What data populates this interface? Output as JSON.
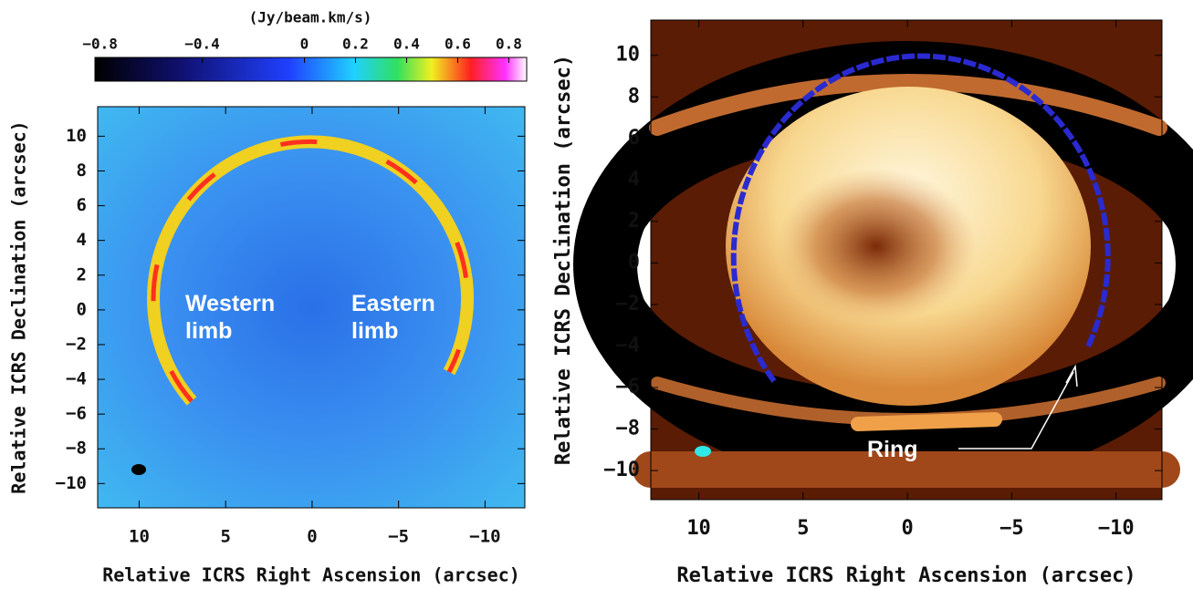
{
  "chart_data": [
    {
      "type": "image",
      "xlabel": "Relative ICRS Right Ascension (arcsec)",
      "ylabel": "Relative ICRS Declination (arcsec)",
      "xlim": [
        12.4,
        -12.3
      ],
      "ylim": [
        -11.4,
        11.7
      ],
      "xticks": [
        10,
        5,
        0,
        {
          "value": -5,
          "label": "−5"
        },
        {
          "value": -10,
          "label": "−10"
        }
      ],
      "yticks": [
        {
          "value": -10,
          "label": "−10"
        },
        {
          "value": -8,
          "label": "−8"
        },
        {
          "value": -6,
          "label": "−6"
        },
        {
          "value": -4,
          "label": "−4"
        },
        {
          "value": -2,
          "label": "−2"
        },
        0,
        2,
        4,
        6,
        8,
        10
      ],
      "colorbar": {
        "label": "(Jy/beam.km/s)",
        "lim": [
          -0.82,
          0.87
        ],
        "ticks": [
          {
            "value": -0.8,
            "label": "−0.8"
          },
          {
            "value": -0.4,
            "label": "−0.4"
          },
          0,
          0.2,
          0.4,
          0.6,
          0.8
        ]
      },
      "annotations": [
        "Western limb",
        "Eastern limb"
      ]
    },
    {
      "type": "image",
      "xlabel": "Relative ICRS Right Ascension (arcsec)",
      "ylabel": "Relative ICRS Declination (arcsec)",
      "xlim": [
        12.3,
        -12.2
      ],
      "ylim": [
        -11.4,
        11.7
      ],
      "xticks": [
        10,
        5,
        0,
        {
          "value": -5,
          "label": "−5"
        },
        {
          "value": -10,
          "label": "−10"
        }
      ],
      "yticks": [
        {
          "value": -10,
          "label": "−10"
        },
        {
          "value": -8,
          "label": "−8"
        },
        {
          "value": -6,
          "label": "−6"
        },
        {
          "value": -4,
          "label": "−4"
        },
        {
          "value": -2,
          "label": "−2"
        },
        0,
        2,
        4,
        6,
        8,
        10
      ],
      "annotations": [
        "Ring"
      ]
    }
  ]
}
